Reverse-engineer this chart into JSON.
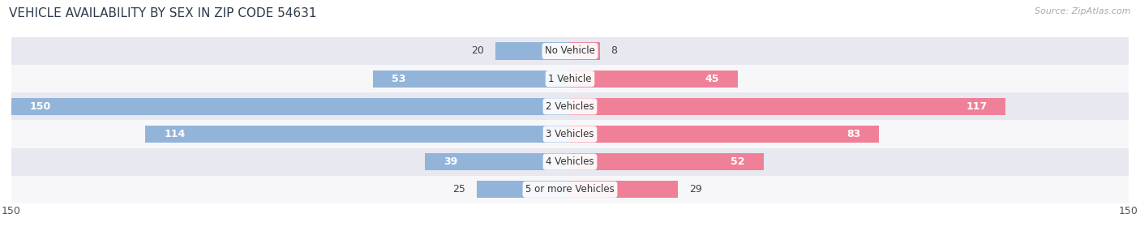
{
  "title": "VEHICLE AVAILABILITY BY SEX IN ZIP CODE 54631",
  "source": "Source: ZipAtlas.com",
  "categories": [
    "No Vehicle",
    "1 Vehicle",
    "2 Vehicles",
    "3 Vehicles",
    "4 Vehicles",
    "5 or more Vehicles"
  ],
  "male_values": [
    20,
    53,
    150,
    114,
    39,
    25
  ],
  "female_values": [
    8,
    45,
    117,
    83,
    52,
    29
  ],
  "male_color": "#92b4d9",
  "female_color": "#f08098",
  "row_bg_light": "#e8e8f0",
  "row_bg_white": "#f7f7fa",
  "xlim": 150,
  "label_inside_threshold": 35,
  "bar_height": 0.62,
  "title_fontsize": 11,
  "source_fontsize": 8,
  "label_fontsize": 9,
  "axis_label_fontsize": 9,
  "category_fontsize": 8.5
}
